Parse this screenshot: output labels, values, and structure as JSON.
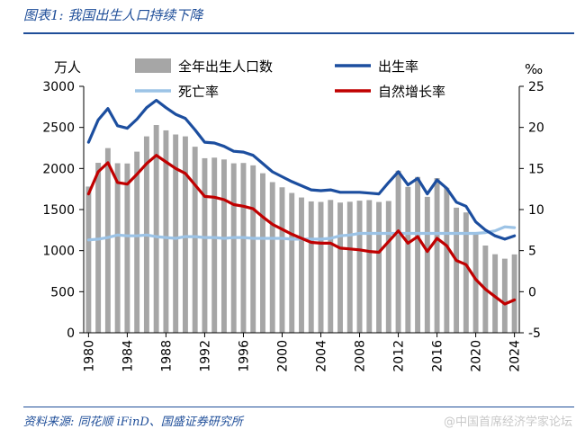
{
  "figure": {
    "title": "图表1:  我国出生人口持续下降",
    "source": "资料来源:  同花顺 iFinD、国盛证券研究所",
    "watermark": "@中国首席经济学家论坛"
  },
  "chart_data": {
    "type": "bar",
    "x": [
      1980,
      1981,
      1982,
      1983,
      1984,
      1985,
      1986,
      1987,
      1988,
      1989,
      1990,
      1991,
      1992,
      1993,
      1994,
      1995,
      1996,
      1997,
      1998,
      1999,
      2000,
      2001,
      2002,
      2003,
      2004,
      2005,
      2006,
      2007,
      2008,
      2009,
      2010,
      2011,
      2012,
      2013,
      2014,
      2015,
      2016,
      2017,
      2018,
      2019,
      2020,
      2021,
      2022,
      2023,
      2024
    ],
    "xticks": [
      "1980",
      "1984",
      "1988",
      "1992",
      "1996",
      "2000",
      "2004",
      "2008",
      "2012",
      "2016",
      "2020",
      "2024"
    ],
    "left_axis": {
      "label": "万人",
      "ylim": [
        0,
        3000
      ],
      "ticks": [
        "0",
        "500",
        "1000",
        "1500",
        "2000",
        "2500",
        "3000"
      ]
    },
    "right_axis": {
      "label": "‰",
      "ylim": [
        -5,
        25
      ],
      "ticks": [
        "-5",
        "0",
        "5",
        "10",
        "15",
        "20",
        "25"
      ]
    },
    "grid": false,
    "legend_position": "top",
    "series": [
      {
        "name": "全年出生人口数",
        "type": "bar",
        "axis": "left",
        "color": "#a6a6a6",
        "values": [
          1780,
          2069,
          2248,
          2064,
          2061,
          2205,
          2391,
          2529,
          2464,
          2414,
          2391,
          2265,
          2125,
          2132,
          2110,
          2063,
          2067,
          2038,
          1942,
          1834,
          1771,
          1702,
          1647,
          1599,
          1593,
          1617,
          1585,
          1595,
          1608,
          1615,
          1592,
          1604,
          1973,
          1776,
          1897,
          1655,
          1883,
          1765,
          1523,
          1465,
          1202,
          1062,
          956,
          902,
          954
        ]
      },
      {
        "name": "出生率",
        "type": "line",
        "axis": "right",
        "color": "#1c4e9f",
        "values": [
          18.2,
          20.9,
          22.3,
          20.2,
          19.9,
          21.0,
          22.4,
          23.3,
          22.4,
          21.6,
          21.1,
          19.7,
          18.2,
          18.1,
          17.7,
          17.1,
          17.0,
          16.6,
          15.6,
          14.6,
          14.0,
          13.4,
          12.9,
          12.4,
          12.3,
          12.4,
          12.1,
          12.1,
          12.1,
          12.0,
          11.9,
          13.3,
          14.6,
          13.0,
          13.8,
          11.9,
          13.6,
          12.6,
          10.9,
          10.4,
          8.5,
          7.5,
          6.8,
          6.4,
          6.8
        ]
      },
      {
        "name": "死亡率",
        "type": "line",
        "axis": "right",
        "color": "#9cc3e6",
        "values": [
          6.3,
          6.4,
          6.6,
          6.9,
          6.8,
          6.8,
          6.9,
          6.7,
          6.6,
          6.5,
          6.7,
          6.7,
          6.6,
          6.6,
          6.5,
          6.6,
          6.6,
          6.5,
          6.5,
          6.5,
          6.5,
          6.4,
          6.4,
          6.4,
          6.4,
          6.5,
          6.8,
          6.9,
          7.1,
          7.1,
          7.1,
          7.1,
          7.1,
          7.1,
          7.1,
          7.1,
          7.1,
          7.1,
          7.1,
          7.1,
          7.1,
          7.2,
          7.4,
          7.9,
          7.8
        ]
      },
      {
        "name": "自然增长率",
        "type": "line",
        "axis": "right",
        "color": "#c00000",
        "values": [
          11.9,
          14.6,
          15.7,
          13.3,
          13.1,
          14.3,
          15.6,
          16.6,
          15.8,
          15.0,
          14.4,
          13.0,
          11.6,
          11.5,
          11.2,
          10.6,
          10.4,
          10.1,
          9.1,
          8.2,
          7.6,
          7.0,
          6.5,
          6.0,
          5.9,
          5.9,
          5.3,
          5.2,
          5.1,
          4.9,
          4.8,
          6.1,
          7.4,
          5.9,
          6.7,
          4.9,
          6.5,
          5.6,
          3.8,
          3.3,
          1.5,
          0.3,
          -0.6,
          -1.5,
          -1.0
        ]
      }
    ]
  }
}
